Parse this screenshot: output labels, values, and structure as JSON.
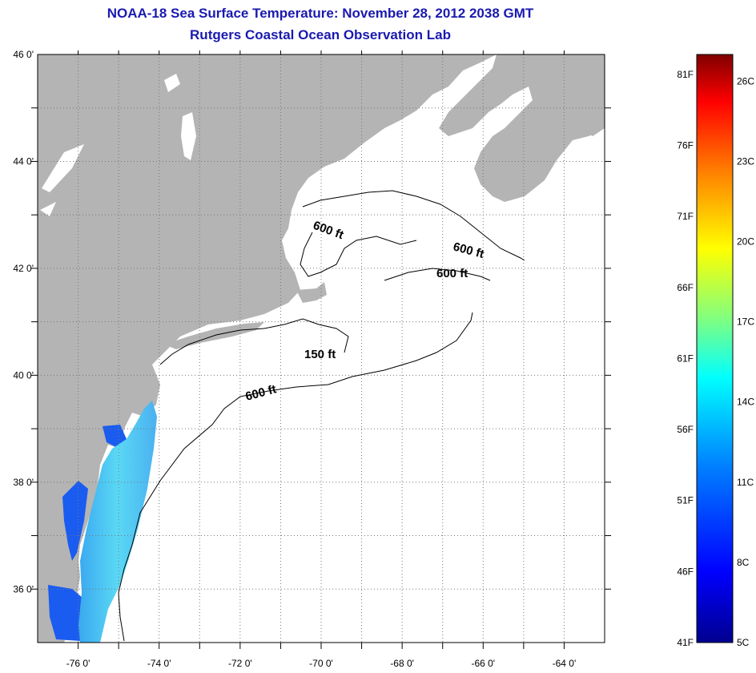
{
  "header": {
    "title": "NOAA-18 Sea Surface Temperature:  November 28, 2012 2038 GMT",
    "subtitle": "Rutgers Coastal Ocean Observation Lab"
  },
  "map": {
    "lon_range": [
      -77,
      -63
    ],
    "lat_range": [
      35,
      46
    ],
    "lat_labels": [
      {
        "value": 46,
        "text": "46 0'"
      },
      {
        "value": 44,
        "text": "44 0'"
      },
      {
        "value": 42,
        "text": "42 0'"
      },
      {
        "value": 40,
        "text": "40 0'"
      },
      {
        "value": 38,
        "text": "38 0'"
      },
      {
        "value": 36,
        "text": "36 0'"
      }
    ],
    "lon_labels": [
      {
        "value": -76,
        "text": "-76 0'"
      },
      {
        "value": -74,
        "text": "-74 0'"
      },
      {
        "value": -72,
        "text": "-72 0'"
      },
      {
        "value": -70,
        "text": "-70 0'"
      },
      {
        "value": -68,
        "text": "-68 0'"
      },
      {
        "value": -66,
        "text": "-66 0'"
      },
      {
        "value": -64,
        "text": "-64 0'"
      }
    ],
    "gridlines": true,
    "contour_labels": [
      "600 ft",
      "600 ft",
      "600 ft",
      "150 ft",
      "600 ft"
    ],
    "colors": {
      "land": "#b4b4b4",
      "ocean": "#ffffff",
      "bay_water": "#1a5cf0"
    }
  },
  "colorbar": {
    "range_F": [
      41,
      81
    ],
    "range_C": [
      5,
      27
    ],
    "fahrenheit_labels": [
      "81F",
      "76F",
      "71F",
      "66F",
      "61F",
      "56F",
      "51F",
      "46F",
      "41F"
    ],
    "celsius_labels": [
      "26C",
      "23C",
      "20C",
      "17C",
      "14C",
      "11C",
      "8C",
      "5C"
    ],
    "colors": [
      "#00008f",
      "#0000ff",
      "#0080ff",
      "#00ffff",
      "#80ff80",
      "#ffff00",
      "#ff8000",
      "#ff0000",
      "#800000"
    ]
  }
}
